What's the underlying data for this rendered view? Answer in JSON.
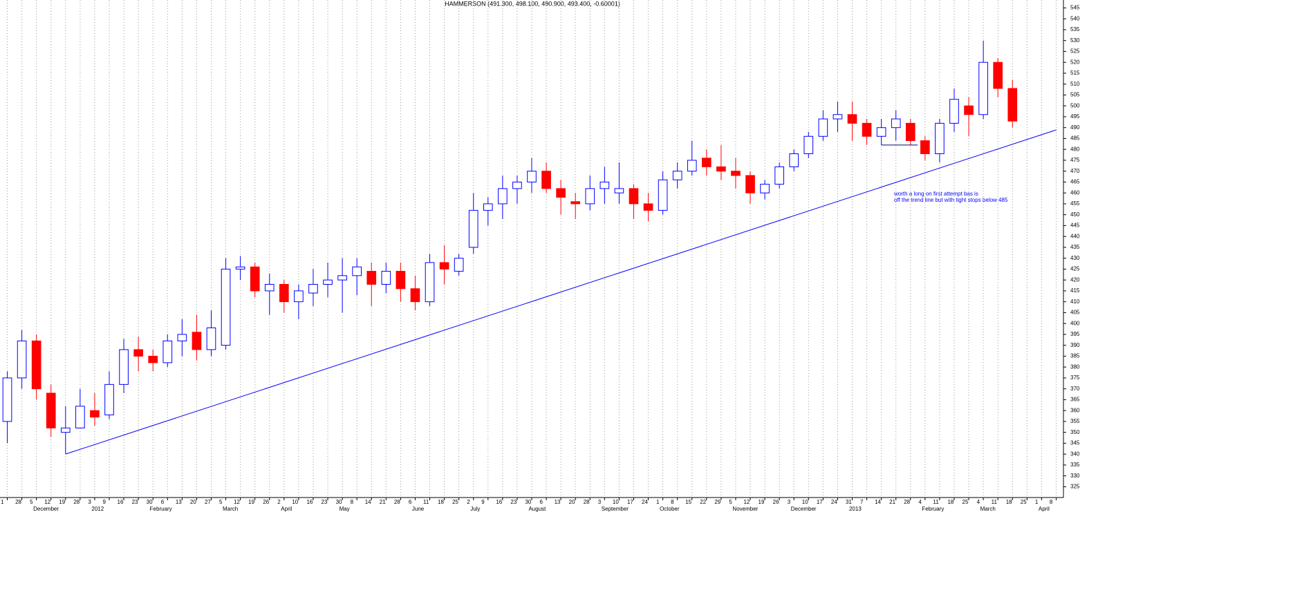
{
  "chart_data": {
    "type": "candlestick",
    "title": "HAMMERSON (491.300, 498.100, 490.900, 493.400, -0.60001)",
    "annotation": [
      "worth a long on first attempt bas is",
      "off the trend line but with tight stops below 485"
    ],
    "categories": [
      "1",
      "28",
      "5",
      "12",
      "19",
      "28",
      "3",
      "9",
      "16",
      "23",
      "30",
      "6",
      "13",
      "20",
      "27",
      "5",
      "12",
      "19",
      "26",
      "2",
      "10",
      "16",
      "23",
      "30",
      "8",
      "14",
      "21",
      "28",
      "6",
      "11",
      "18",
      "25",
      "2",
      "9",
      "16",
      "23",
      "30",
      "6",
      "13",
      "20",
      "28",
      "3",
      "10",
      "17",
      "24",
      "1",
      "8",
      "15",
      "22",
      "29",
      "5",
      "12",
      "19",
      "26",
      "3",
      "10",
      "17",
      "24",
      "31",
      "7",
      "14",
      "21",
      "28",
      "4",
      "11",
      "18",
      "25",
      "4",
      "11",
      "18",
      "25",
      "1",
      "8"
    ],
    "month_labels": [
      null,
      null,
      "December",
      null,
      null,
      null,
      "2012",
      null,
      null,
      null,
      "February",
      null,
      null,
      null,
      null,
      "March",
      null,
      null,
      null,
      "April",
      null,
      null,
      null,
      "May",
      null,
      null,
      null,
      null,
      "June",
      null,
      null,
      null,
      "July",
      null,
      null,
      null,
      "August",
      null,
      null,
      null,
      null,
      "September",
      null,
      null,
      null,
      "October",
      null,
      null,
      null,
      null,
      "November",
      null,
      null,
      null,
      "December",
      null,
      null,
      null,
      "2013",
      null,
      null,
      null,
      null,
      "February",
      null,
      null,
      null,
      "March",
      null,
      null,
      null,
      "April",
      null
    ],
    "open": [
      355,
      375,
      392,
      368,
      350,
      352,
      360,
      358,
      372,
      388,
      385,
      382,
      392,
      396,
      388,
      390,
      425,
      426,
      415,
      418,
      410,
      414,
      418,
      420,
      422,
      424,
      418,
      424,
      416,
      410,
      428,
      424,
      435,
      452,
      455,
      462,
      465,
      470,
      462,
      456,
      455,
      462,
      460,
      462,
      455,
      452,
      466,
      470,
      476,
      472,
      470,
      468,
      460,
      464,
      472,
      478,
      486,
      494,
      496,
      492,
      486,
      490,
      492,
      484,
      478,
      492,
      500,
      496,
      520,
      508,
      null,
      null,
      null
    ],
    "high": [
      378,
      397,
      395,
      372,
      362,
      370,
      368,
      378,
      393,
      394,
      388,
      395,
      402,
      404,
      406,
      430,
      431,
      428,
      423,
      420,
      418,
      425,
      428,
      430,
      430,
      428,
      428,
      428,
      422,
      432,
      436,
      432,
      460,
      458,
      468,
      468,
      476,
      474,
      466,
      460,
      468,
      472,
      474,
      464,
      460,
      470,
      474,
      484,
      480,
      482,
      476,
      470,
      466,
      474,
      480,
      488,
      498,
      502,
      502,
      494,
      494,
      498,
      494,
      486,
      494,
      508,
      504,
      530,
      522,
      512,
      null,
      null,
      null
    ],
    "low": [
      345,
      370,
      365,
      348,
      340,
      352,
      353,
      356,
      368,
      378,
      378,
      380,
      385,
      383,
      385,
      388,
      420,
      412,
      404,
      405,
      402,
      408,
      412,
      405,
      413,
      408,
      414,
      410,
      406,
      408,
      418,
      422,
      432,
      445,
      448,
      455,
      460,
      460,
      450,
      448,
      452,
      455,
      455,
      448,
      447,
      450,
      462,
      468,
      468,
      466,
      462,
      455,
      457,
      462,
      470,
      476,
      484,
      488,
      484,
      482,
      482,
      484,
      482,
      475,
      474,
      488,
      486,
      494,
      504,
      490,
      null,
      null,
      null
    ],
    "close": [
      375,
      392,
      370,
      352,
      352,
      362,
      357,
      372,
      388,
      385,
      382,
      392,
      395,
      388,
      398,
      425,
      426,
      415,
      418,
      410,
      415,
      418,
      420,
      422,
      426,
      418,
      424,
      416,
      410,
      428,
      425,
      430,
      452,
      455,
      462,
      465,
      470,
      462,
      458,
      455,
      462,
      465,
      462,
      455,
      452,
      466,
      470,
      475,
      472,
      470,
      468,
      460,
      464,
      472,
      478,
      486,
      494,
      496,
      492,
      486,
      490,
      494,
      484,
      478,
      492,
      503,
      496,
      520,
      508,
      493,
      null,
      null,
      null
    ],
    "up_color": "#0000ff",
    "down_color": "#ff0000",
    "trendline": [
      340,
      489
    ],
    "support_line": 482,
    "ylim": [
      321,
      548
    ],
    "yticks": [
      325,
      330,
      335,
      340,
      345,
      350,
      355,
      360,
      365,
      370,
      375,
      380,
      385,
      390,
      395,
      400,
      405,
      410,
      415,
      420,
      425,
      430,
      435,
      440,
      445,
      450,
      455,
      460,
      465,
      470,
      475,
      480,
      485,
      490,
      495,
      500,
      505,
      510,
      515,
      520,
      525,
      530,
      535,
      540,
      545
    ],
    "grid": true
  }
}
